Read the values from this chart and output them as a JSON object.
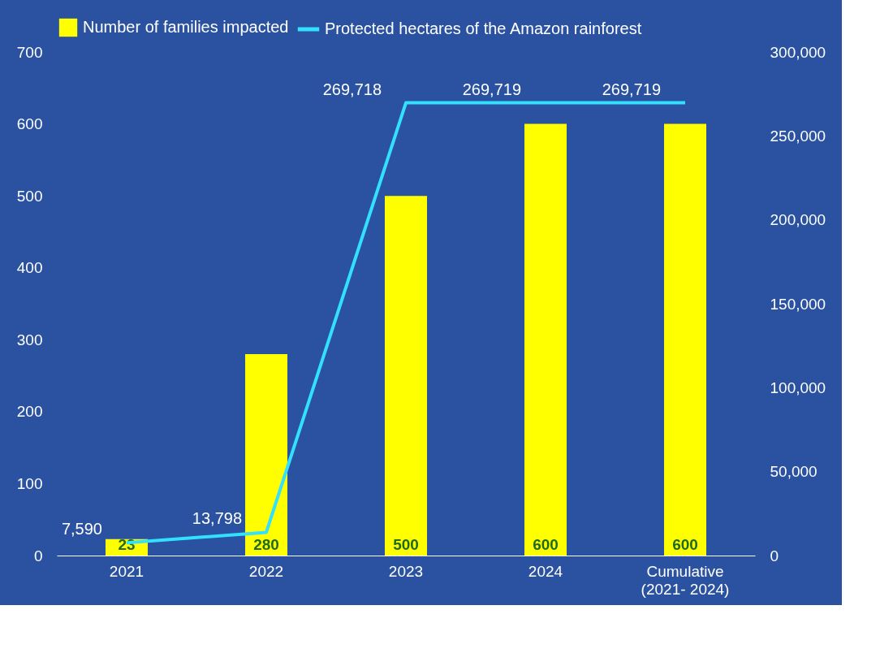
{
  "chart_data": {
    "type": "bar",
    "categories": [
      "2021",
      "2022",
      "2023",
      "2024",
      "Cumulative\n(2021- 2024)"
    ],
    "series": [
      {
        "name": "Number of families impacted",
        "color": "#ffff00",
        "values": [
          23,
          280,
          500,
          600,
          600
        ]
      },
      {
        "name": "Protected hectares of the Amazon rainforest",
        "type": "line",
        "axis": "y2",
        "color": "#33e0ff",
        "values": [
          7590,
          13798,
          269718,
          269719,
          269719
        ],
        "value_labels": [
          "7,590",
          "13,798",
          "269,718",
          "269,719",
          "269,719"
        ]
      }
    ],
    "ylim": [
      0,
      700
    ],
    "yticks": [
      0,
      100,
      200,
      300,
      400,
      500,
      600,
      700
    ],
    "y2lim": [
      0,
      300000
    ],
    "y2ticks": [
      {
        "value": 0,
        "label": "0"
      },
      {
        "value": 50000,
        "label": "50,000"
      },
      {
        "value": 100000,
        "label": "100,000"
      },
      {
        "value": 150000,
        "label": "150,000"
      },
      {
        "value": 200000,
        "label": "200,000"
      },
      {
        "value": 250000,
        "label": "250,000"
      },
      {
        "value": 300000,
        "label": "300,000"
      }
    ],
    "data_labels": true,
    "legend": "top",
    "grid": false,
    "marker": "none",
    "line_style": "solid"
  }
}
